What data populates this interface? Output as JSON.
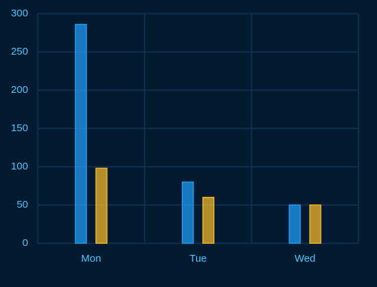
{
  "chart_data": {
    "type": "bar",
    "categories": [
      "Mon",
      "Tue",
      "Wed"
    ],
    "series": [
      {
        "color": "#1f9bf0",
        "values": [
          286,
          80,
          50
        ]
      },
      {
        "color": "#f2b52a",
        "values": [
          98,
          60,
          50
        ]
      }
    ],
    "ylim": [
      0,
      300
    ],
    "yticks": [
      0,
      50,
      100,
      150,
      200,
      250,
      300
    ],
    "grid": true
  }
}
